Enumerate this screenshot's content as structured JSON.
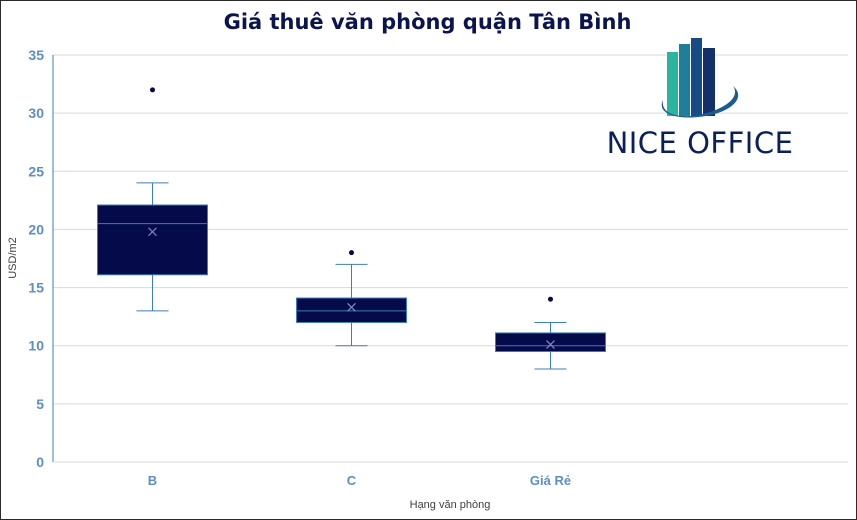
{
  "chart_data": {
    "type": "box",
    "title": "Giá thuê văn phòng quận Tân Bình",
    "xlabel": "Hạng văn phòng",
    "ylabel": "USD/m2",
    "ylim": [
      0,
      35
    ],
    "yticks": [
      0,
      5,
      10,
      15,
      20,
      25,
      30,
      35
    ],
    "grid": true,
    "categories": [
      "B",
      "C",
      "Giá Rẻ"
    ],
    "boxes": [
      {
        "category": "B",
        "min": 13,
        "q1": 16.1,
        "median": 20.5,
        "q3": 22.1,
        "max": 24,
        "mean": 19.8,
        "outliers": [
          32
        ]
      },
      {
        "category": "C",
        "min": 10,
        "q1": 12,
        "median": 13,
        "q3": 14.1,
        "max": 17,
        "mean": 13.3,
        "outliers": [
          18
        ]
      },
      {
        "category": "Giá Rẻ",
        "min": 8,
        "q1": 9.5,
        "median": 10,
        "q3": 11.1,
        "max": 12,
        "mean": 10.1,
        "outliers": [
          14
        ]
      }
    ]
  },
  "logo": {
    "name": "NICE OFFICE",
    "bar_colors": [
      "#2bb5a0",
      "#1e7f9a",
      "#164b86",
      "#14306b"
    ],
    "swoosh_color": "#1b5c8e"
  },
  "colors": {
    "box_fill": "#050a4a",
    "whisker": "#3a7fb5",
    "mean_marker": "#7f8bc0",
    "axis_text": "#5b8fc6",
    "grid": "#d9d9d9",
    "title": "#0b1450"
  }
}
